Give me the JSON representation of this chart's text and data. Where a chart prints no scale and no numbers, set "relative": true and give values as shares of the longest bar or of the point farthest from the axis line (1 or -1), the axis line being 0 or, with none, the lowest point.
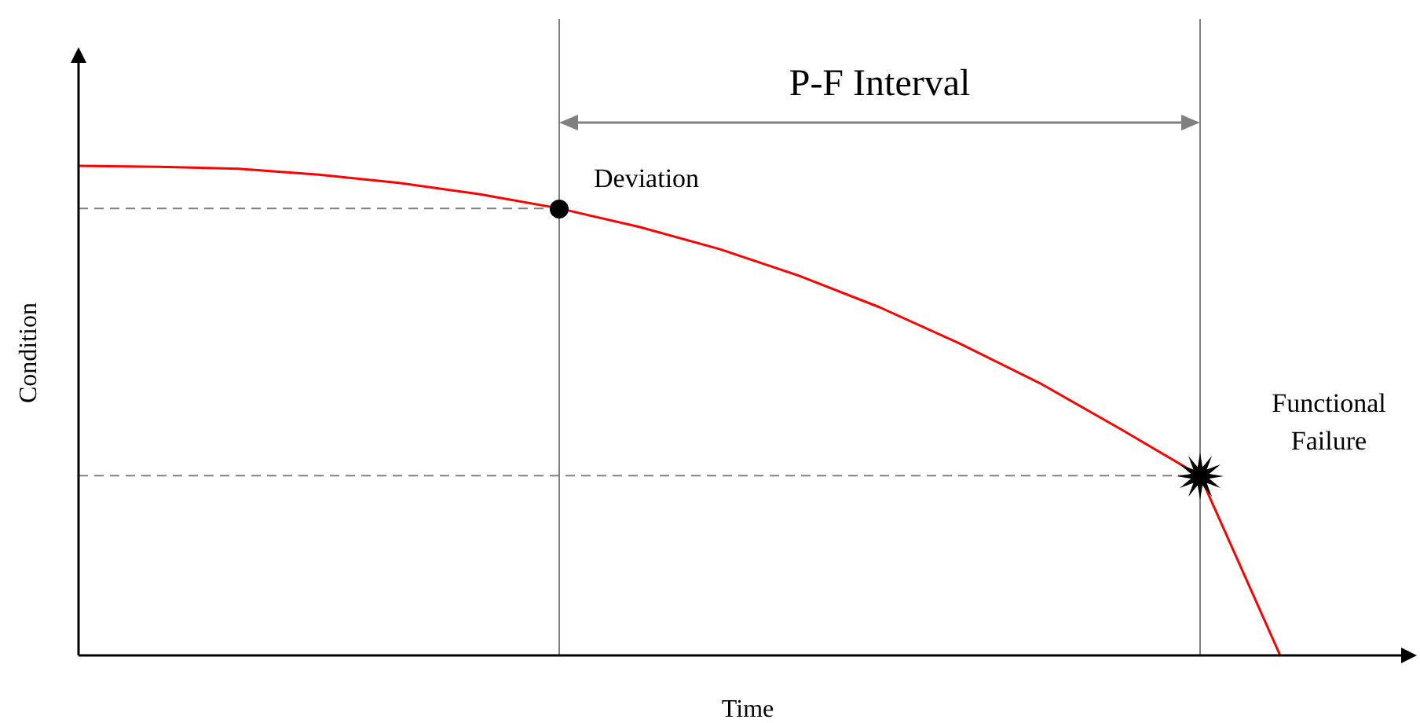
{
  "chart_data": {
    "type": "line",
    "relative": true,
    "xlabel": "Time",
    "ylabel": "Condition",
    "categories": [
      null,
      null,
      null,
      null,
      null,
      null,
      null,
      null,
      null,
      null,
      null,
      null,
      null,
      null,
      null,
      null
    ],
    "series": [
      {
        "color": "#ff0000",
        "values": [
          1.0,
          0.998,
          0.994,
          0.982,
          0.965,
          0.942,
          0.913,
          0.875,
          0.83,
          0.775,
          0.711,
          0.637,
          0.556,
          0.463,
          0.367,
          0
        ]
      }
    ],
    "marker": "none",
    "line_style": "solid",
    "grid": false,
    "legend": false,
    "ref_lines": [
      {
        "axis": "y",
        "value": 0.913,
        "color": "#808080",
        "line_style": "dashed"
      },
      {
        "axis": "y",
        "value": 0.367,
        "color": "#808080",
        "line_style": "dashed"
      }
    ],
    "annotations": [
      "P-F Interval",
      "Deviation",
      "Functional Failure"
    ]
  }
}
